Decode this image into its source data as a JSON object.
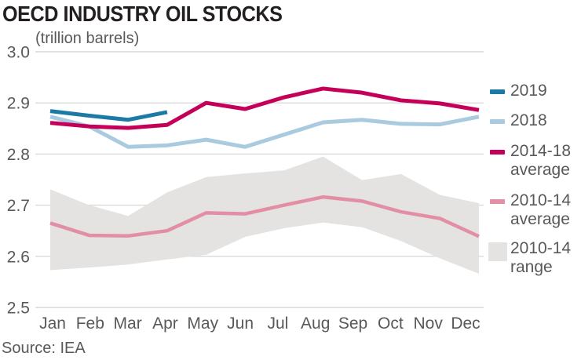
{
  "chart_data": {
    "type": "line",
    "title": "OECD INDUSTRY OIL STOCKS",
    "subtitle": "(trillion barrels)",
    "source": "Source: IEA",
    "x_categories": [
      "Jan",
      "Feb",
      "Mar",
      "Apr",
      "May",
      "Jun",
      "Jul",
      "Aug",
      "Sep",
      "Oct",
      "Nov",
      "Dec"
    ],
    "ylim": [
      2.5,
      3.0
    ],
    "yticks": [
      "3.0",
      "2.9",
      "2.8",
      "2.7",
      "2.6",
      "2.5"
    ],
    "grid": true,
    "grid_color": "#d9d9d9",
    "text_color": "#58595b",
    "legend_position": "right",
    "band": {
      "name": "2010-14 range",
      "color": "#e4e3e1",
      "top": [
        2.731,
        2.7,
        2.679,
        2.725,
        2.755,
        2.762,
        2.768,
        2.795,
        2.749,
        2.761,
        2.72,
        2.704
      ],
      "bottom": [
        2.573,
        2.578,
        2.584,
        2.594,
        2.603,
        2.638,
        2.655,
        2.666,
        2.657,
        2.63,
        2.596,
        2.566
      ]
    },
    "series": [
      {
        "name": "2010-14 average",
        "color": "#e28fa6",
        "width": 4.5,
        "values": [
          2.665,
          2.641,
          2.64,
          2.65,
          2.685,
          2.683,
          2.7,
          2.716,
          2.708,
          2.687,
          2.674,
          2.639
        ]
      },
      {
        "name": "2018",
        "color": "#a9cadf",
        "width": 5,
        "values": [
          2.873,
          2.854,
          2.814,
          2.817,
          2.828,
          2.814,
          2.838,
          2.862,
          2.867,
          2.859,
          2.858,
          2.873
        ]
      },
      {
        "name": "2014-18 average",
        "color": "#c40059",
        "width": 5,
        "values": [
          2.861,
          2.854,
          2.851,
          2.857,
          2.9,
          2.888,
          2.911,
          2.928,
          2.92,
          2.905,
          2.899,
          2.886
        ]
      },
      {
        "name": "2019",
        "color": "#1b7aa6",
        "width": 5,
        "values": [
          2.884,
          2.875,
          2.867,
          2.882,
          null,
          null,
          null,
          null,
          null,
          null,
          null,
          null
        ]
      }
    ]
  },
  "legend": {
    "items": [
      {
        "line1": "2019",
        "line2": "",
        "color": "#1b7aa6",
        "shape": "dash"
      },
      {
        "line1": "2018",
        "line2": "",
        "color": "#a9cadf",
        "shape": "dash"
      },
      {
        "line1": "2014-18",
        "line2": "average",
        "color": "#c40059",
        "shape": "dash"
      },
      {
        "line1": "2010-14",
        "line2": "average",
        "color": "#e28fa6",
        "shape": "dash"
      },
      {
        "line1": "2010-14",
        "line2": "range",
        "color": "#e4e3e1",
        "shape": "square"
      }
    ]
  }
}
